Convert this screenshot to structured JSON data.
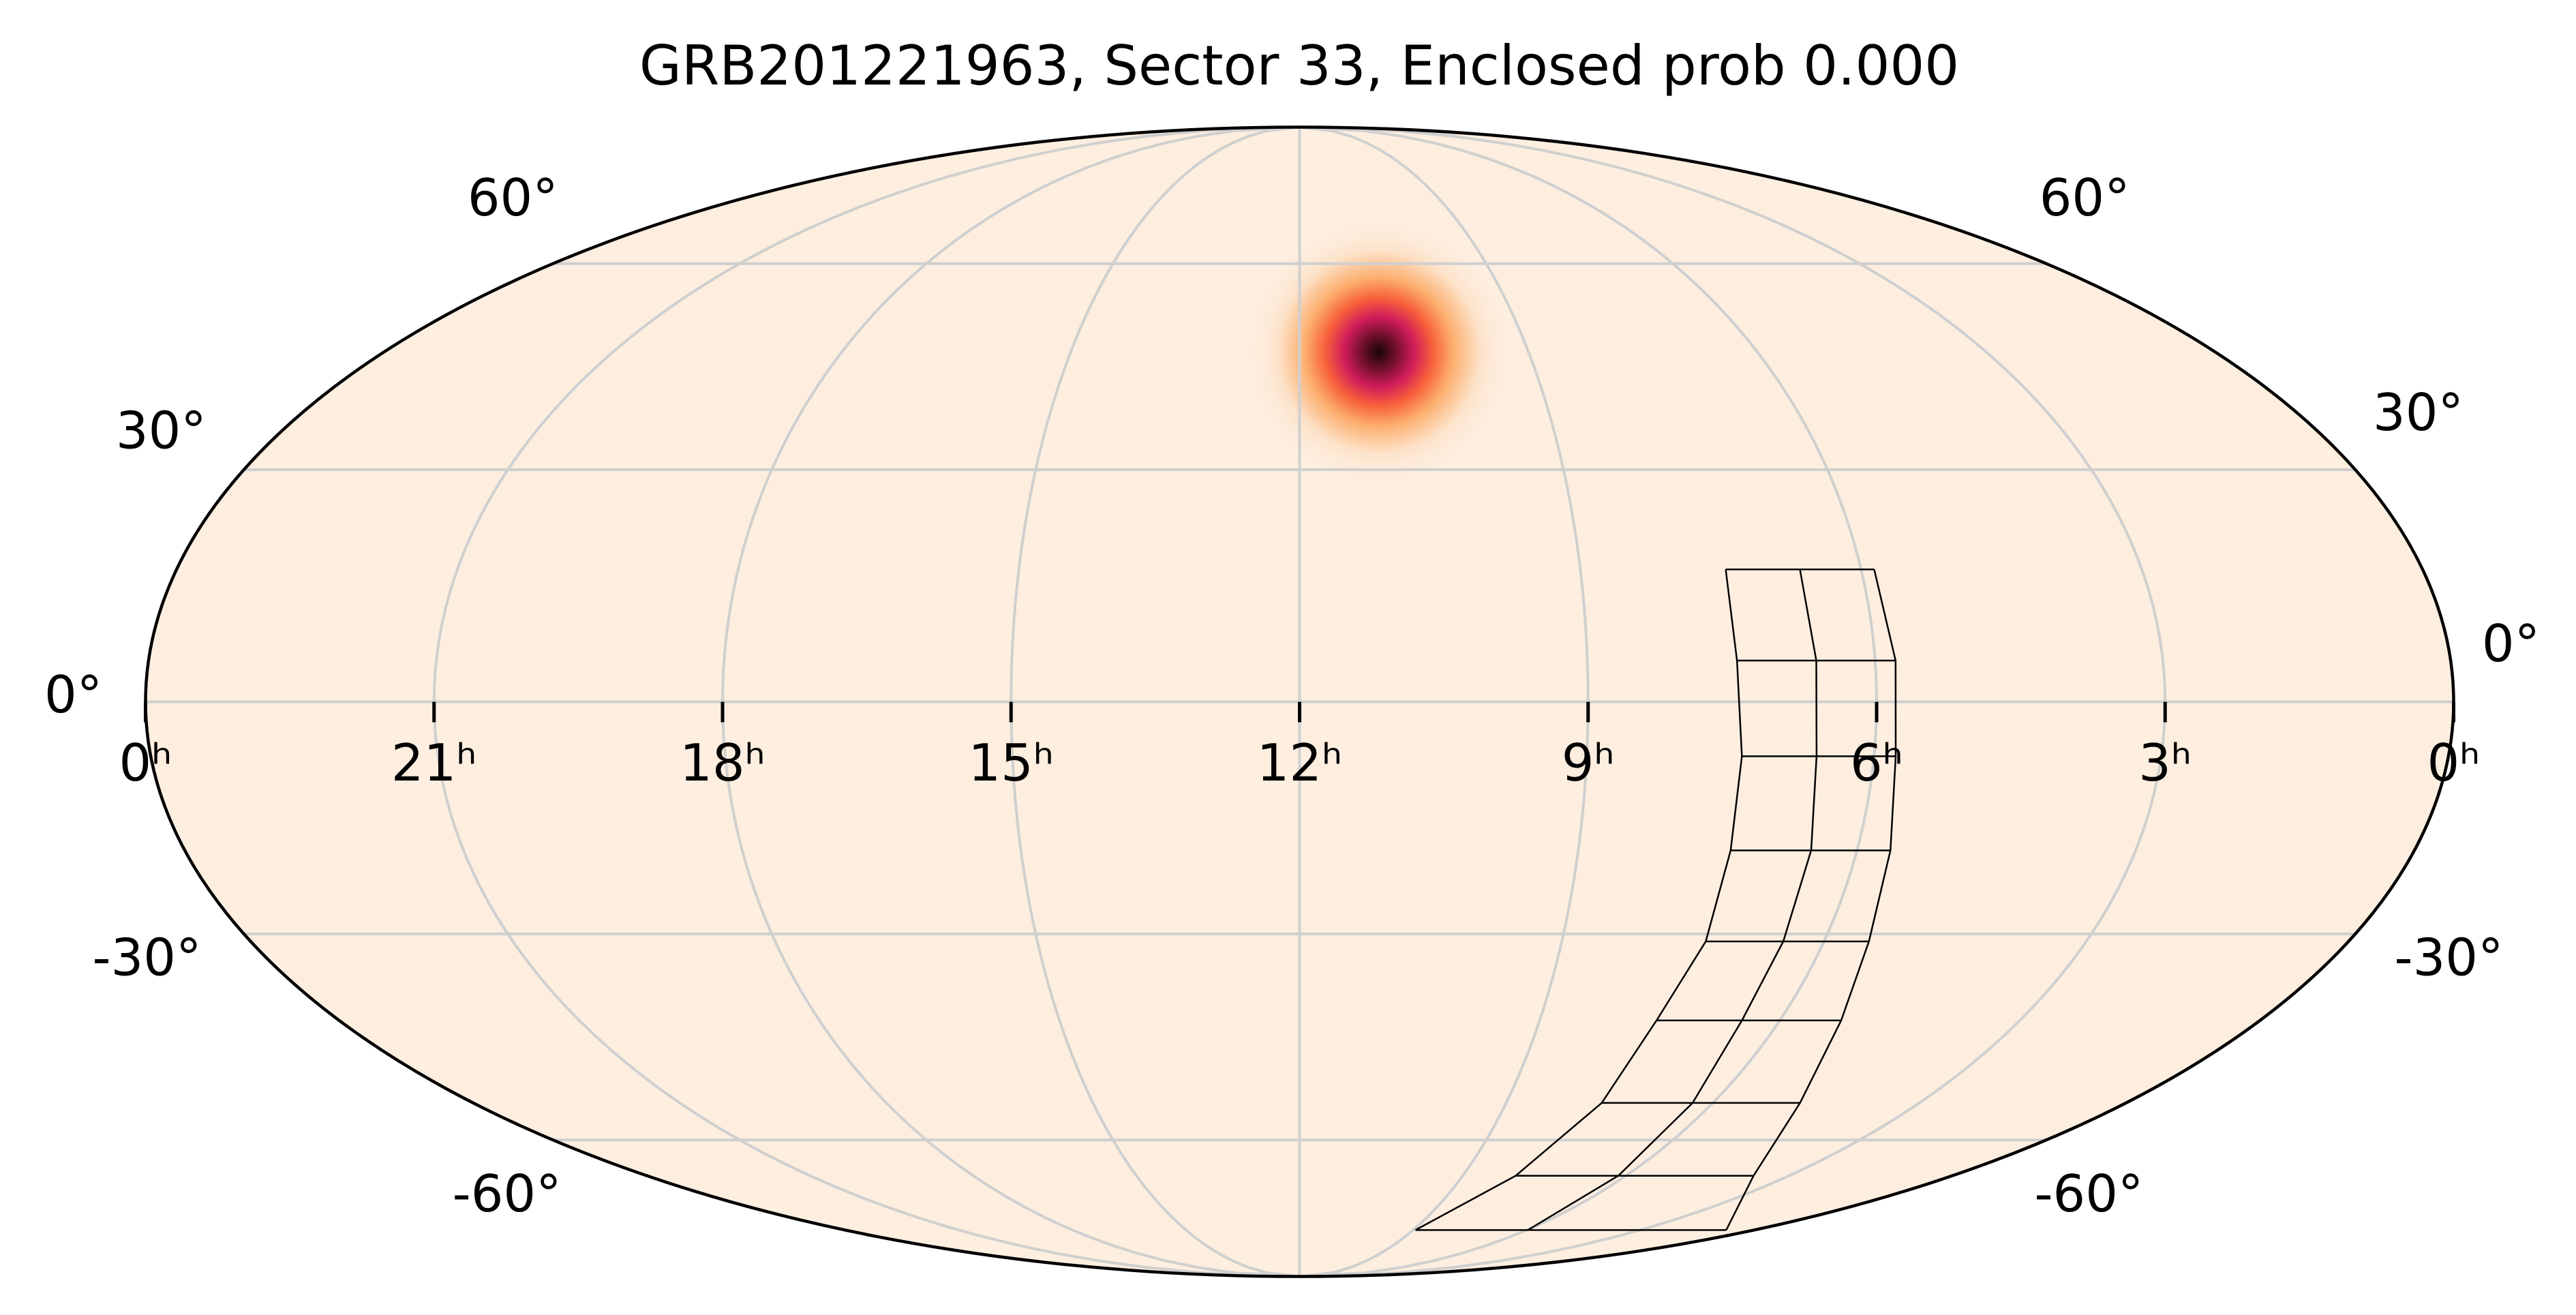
{
  "chart_data": {
    "type": "mollweide",
    "title": "GRB201221963, Sector 33, Enclosed prob 0.000",
    "background_color": "#fdeee0",
    "grid": true,
    "xlim": [
      360,
      0
    ],
    "xticks": [
      {
        "value": 360,
        "label": "0ʰ"
      },
      {
        "value": 315,
        "label": "21ʰ"
      },
      {
        "value": 270,
        "label": "18ʰ"
      },
      {
        "value": 225,
        "label": "15ʰ"
      },
      {
        "value": 180,
        "label": "12ʰ"
      },
      {
        "value": 135,
        "label": "9ʰ"
      },
      {
        "value": 90,
        "label": "6ʰ"
      },
      {
        "value": 45,
        "label": "3ʰ"
      },
      {
        "value": 0,
        "label": "0ʰ"
      }
    ],
    "ylim": [
      -90,
      90
    ],
    "yticks": [
      {
        "value": 60,
        "label": "60°"
      },
      {
        "value": 30,
        "label": "30°"
      },
      {
        "value": 0,
        "label": "0°"
      },
      {
        "value": -30,
        "label": "-30°"
      },
      {
        "value": -60,
        "label": "-60°"
      }
    ],
    "localization": {
      "ra": 164.4,
      "dec": 46.4,
      "sigma": 7
    },
    "footprint": {
      "dec": [
        16.9,
        5.24,
        -6.92,
        -19.0,
        -31.0,
        -41.9,
        -54.1,
        -66.1,
        -76.6
      ],
      "ra_left": [
        111.7,
        111.6,
        110.7,
        110.4,
        110.3,
        113.1,
        114.2,
        120.4,
        134.1
      ],
      "ra_mid": [
        99.8,
        99.2,
        99.0,
        97.4,
        97.0,
        97.1,
        94.4,
        92.1,
        89.6
      ],
      "ra_right": [
        87.9,
        86.8,
        86.6,
        84.6,
        82.3,
        78.5,
        71.0,
        54.8,
        11.0
      ]
    }
  }
}
